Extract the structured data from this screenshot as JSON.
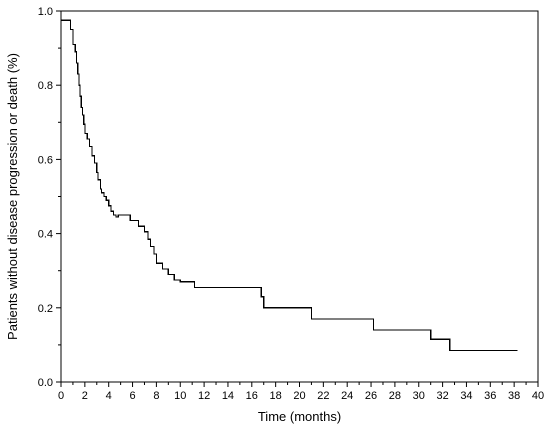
{
  "chart_data": {
    "type": "line",
    "step": true,
    "title": "",
    "xlabel": "Time (months)",
    "ylabel": "Patients without disease progression or death (%)",
    "xlim": [
      0,
      40
    ],
    "ylim": [
      0,
      1.0
    ],
    "x_ticks": [
      0,
      2,
      4,
      6,
      8,
      10,
      12,
      14,
      16,
      18,
      20,
      22,
      24,
      26,
      28,
      30,
      32,
      34,
      36,
      38,
      40
    ],
    "x_tick_labels": [
      "0",
      "2",
      "4",
      "6",
      "8",
      "10",
      "12",
      "14",
      "16",
      "18",
      "20",
      "22",
      "24",
      "26",
      "28",
      "30",
      "32",
      "34",
      "36",
      "38",
      "40"
    ],
    "y_ticks": [
      0,
      0.2,
      0.4,
      0.6,
      0.8,
      1.0
    ],
    "y_tick_labels": [
      "0.0",
      "0.2",
      "0.4",
      "0.6",
      "0.8",
      "1.0"
    ],
    "grid": false,
    "legend": "none",
    "line_color": "#000000",
    "series": [
      {
        "x": [
          0,
          0.8,
          1.0,
          1.2,
          1.3,
          1.4,
          1.5,
          1.6,
          1.7,
          1.8,
          1.9,
          2.0,
          2.2,
          2.4,
          2.6,
          2.8,
          3.0,
          3.1,
          3.3,
          3.4,
          3.6,
          3.8,
          4.0,
          4.2,
          4.4,
          4.6,
          4.8,
          5.0,
          5.8,
          6.5,
          7.0,
          7.3,
          7.5,
          7.8,
          8.0,
          8.5,
          9.0,
          9.5,
          10.0,
          11.2,
          16.8,
          17.0,
          21.0,
          26.2,
          31.0,
          32.6,
          38.3
        ],
        "y": [
          0.975,
          0.95,
          0.91,
          0.89,
          0.86,
          0.83,
          0.8,
          0.77,
          0.74,
          0.72,
          0.695,
          0.67,
          0.655,
          0.635,
          0.61,
          0.59,
          0.565,
          0.545,
          0.52,
          0.51,
          0.5,
          0.49,
          0.475,
          0.46,
          0.45,
          0.445,
          0.45,
          0.45,
          0.435,
          0.42,
          0.405,
          0.385,
          0.365,
          0.345,
          0.32,
          0.305,
          0.29,
          0.275,
          0.27,
          0.255,
          0.23,
          0.2,
          0.17,
          0.14,
          0.115,
          0.085,
          0.085
        ]
      }
    ]
  }
}
